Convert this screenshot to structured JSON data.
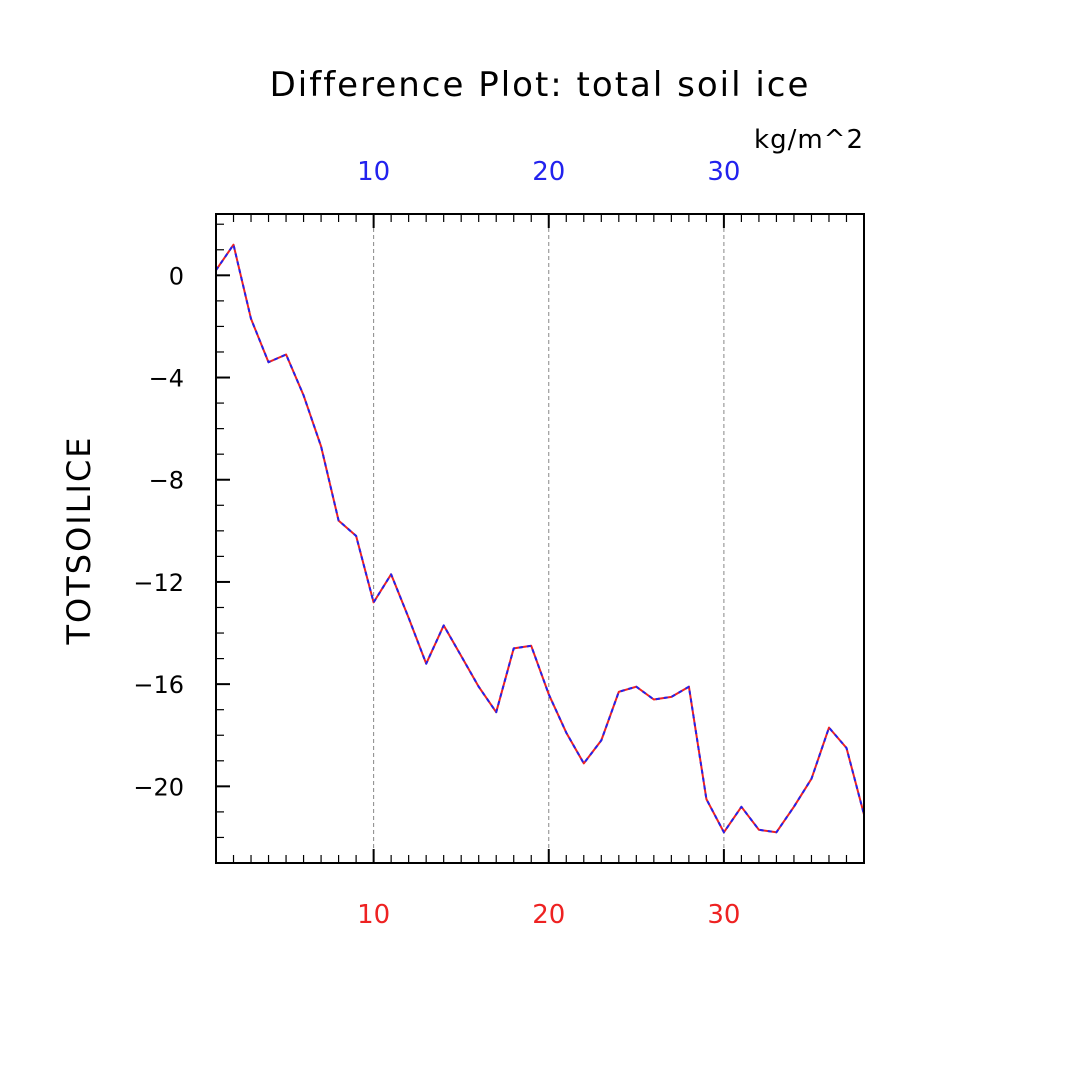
{
  "chart_data": {
    "type": "line",
    "title": "Difference Plot: total soil ice",
    "units": "kg/m^2",
    "ylabel": "TOTSOILICE",
    "xlim": [
      1,
      38
    ],
    "ylim": [
      -23,
      2.4
    ],
    "yticks": [
      0,
      -4,
      -8,
      -12,
      -16,
      -20
    ],
    "ytick_labels": [
      "0",
      "−4",
      "−8",
      "−12",
      "−16",
      "−20"
    ],
    "xticks": [
      10,
      20,
      30
    ],
    "xtick_labels_top": [
      "10",
      "20",
      "30"
    ],
    "xtick_labels_bottom": [
      "10",
      "20",
      "30"
    ],
    "grid": "vertical dashed at x major ticks",
    "colors": {
      "top_axis_labels": "#2222ee",
      "bottom_axis_labels": "#ee2222",
      "series_1": "#ee2222",
      "series_2": "#2222ee",
      "grid": "#888888"
    },
    "series": [
      {
        "values": [
          0.2,
          1.2,
          -1.7,
          -3.4,
          -3.1,
          -4.7,
          -6.7,
          -9.6,
          -10.2,
          -12.8,
          -11.7,
          -13.4,
          -15.2,
          -13.7,
          -14.9,
          -16.1,
          -17.1,
          -14.6,
          -14.5,
          -16.4,
          -17.9,
          -19.1,
          -18.2,
          -16.3,
          -16.1,
          -16.6,
          -16.5,
          -16.1,
          -20.5,
          -21.8,
          -20.8,
          -21.7,
          -21.8,
          -20.8,
          -19.7,
          -17.7,
          -18.5,
          -21.1
        ]
      },
      {
        "values": [
          0.2,
          1.2,
          -1.7,
          -3.4,
          -3.1,
          -4.7,
          -6.7,
          -9.6,
          -10.2,
          -12.8,
          -11.7,
          -13.4,
          -15.2,
          -13.7,
          -14.9,
          -16.1,
          -17.1,
          -14.6,
          -14.5,
          -16.4,
          -17.9,
          -19.1,
          -18.2,
          -16.3,
          -16.1,
          -16.6,
          -16.5,
          -16.1,
          -20.5,
          -21.8,
          -20.8,
          -21.7,
          -21.8,
          -20.8,
          -19.7,
          -17.7,
          -18.5,
          -21.1
        ]
      }
    ]
  }
}
